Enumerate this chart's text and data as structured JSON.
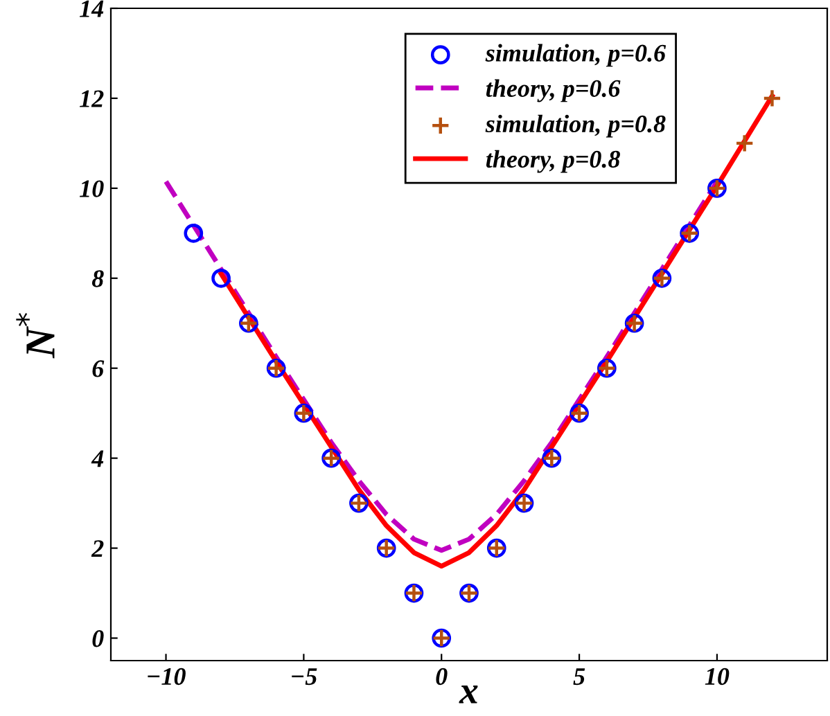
{
  "chart_data": {
    "type": "scatter",
    "xlabel": "x",
    "ylabel": "N$^{*}$",
    "xlim": [
      -12,
      14
    ],
    "ylim": [
      -0.5,
      14
    ],
    "xticks": [
      {
        "value": -10,
        "label": "−10"
      },
      {
        "value": -5,
        "label": "−5"
      },
      0,
      5,
      10
    ],
    "yticks": [
      0,
      2,
      4,
      6,
      8,
      10,
      12,
      14
    ],
    "grid": false,
    "legend": "top",
    "series": [
      {
        "name": "simulation, p=0.6",
        "marker": "circle",
        "color": "#0000ff",
        "x": [
          -9,
          -8,
          -7,
          -6,
          -5,
          -4,
          -3,
          -2,
          -1,
          0,
          1,
          2,
          3,
          4,
          5,
          6,
          7,
          8,
          9,
          10
        ],
        "values": [
          9,
          8,
          7,
          6,
          5,
          4,
          3,
          2,
          1,
          0,
          1,
          2,
          3,
          4,
          5,
          6,
          7,
          8,
          9,
          10
        ]
      },
      {
        "name": "theory, p=0.6",
        "type": "line",
        "line_style": "dashed",
        "color": "#c000c0",
        "x": [
          -10,
          -8,
          -6,
          -5,
          -4,
          -3,
          -2,
          -1,
          0,
          1,
          2,
          3,
          4,
          5,
          6,
          8,
          10
        ],
        "values": [
          10.15,
          8.2,
          6.25,
          5.3,
          4.35,
          3.5,
          2.75,
          2.2,
          1.95,
          2.2,
          2.75,
          3.5,
          4.35,
          5.3,
          6.25,
          8.2,
          10.15
        ]
      },
      {
        "name": "simulation, p=0.8",
        "marker": "cross",
        "color": "#b5500f",
        "x": [
          -7,
          -6,
          -5,
          -4,
          -3,
          -2,
          -1,
          0,
          1,
          2,
          3,
          4,
          5,
          6,
          7,
          8,
          9,
          10,
          11,
          12
        ],
        "values": [
          7,
          6,
          5,
          4,
          3,
          2,
          1,
          0,
          1,
          2,
          3,
          4,
          5,
          6,
          7,
          8,
          9,
          10,
          11,
          12
        ]
      },
      {
        "name": "theory, p=0.8",
        "type": "line",
        "line_style": "solid",
        "color": "#ff0000",
        "x": [
          -8,
          -6,
          -5,
          -4,
          -3,
          -2,
          -1,
          0,
          1,
          2,
          3,
          4,
          5,
          6,
          8,
          10,
          12
        ],
        "values": [
          8.1,
          6.15,
          5.2,
          4.25,
          3.3,
          2.5,
          1.9,
          1.6,
          1.9,
          2.5,
          3.3,
          4.25,
          5.2,
          6.15,
          8.1,
          10.05,
          12.05
        ]
      }
    ]
  }
}
